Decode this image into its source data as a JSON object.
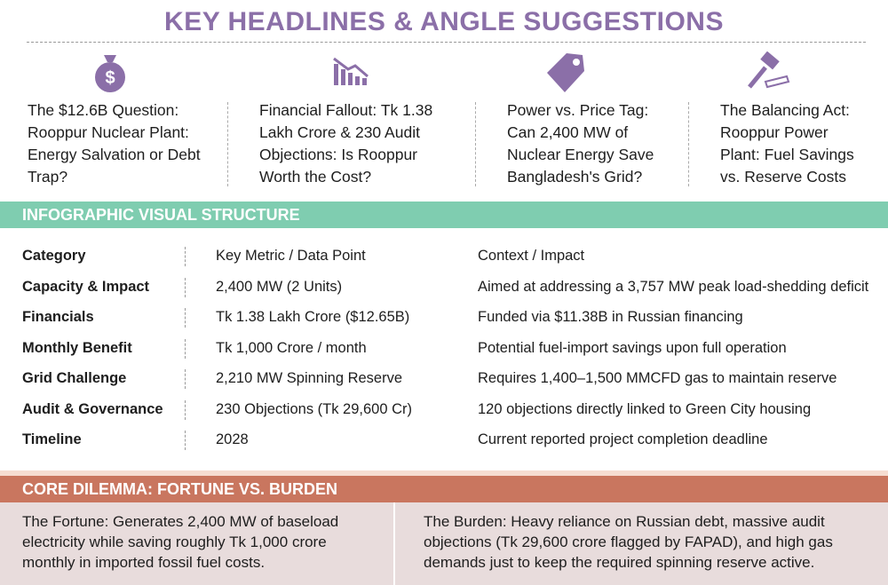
{
  "header": {
    "title": "KEY HEADLINES & ANGLE SUGGESTIONS"
  },
  "headlines": [
    {
      "text": "The $12.6B Question: Rooppur Nuclear Plant: Energy Salvation or Debt Trap?"
    },
    {
      "text": "Financial Fallout: Tk 1.38 Lakh Crore & 230 Audit Objections: Is Rooppur Worth the Cost?"
    },
    {
      "text": "Power vs. Price Tag: Can 2,400 MW of Nuclear Energy Save Bangladesh's Grid?"
    },
    {
      "text": "The Balancing Act: Rooppur Power Plant: Fuel Savings vs. Reserve Costs"
    }
  ],
  "structure": {
    "title": "INFOGRAPHIC VISUAL STRUCTURE",
    "table": {
      "header": [
        "Category",
        "Key Metric / Data Point",
        "Context / Impact"
      ],
      "rows": [
        [
          "Capacity & Impact",
          "2,400 MW (2 Units)",
          "Aimed at addressing a 3,757 MW peak load-shedding deficit"
        ],
        [
          "Financials",
          "Tk 1.38 Lakh Crore ($12.65B)",
          "Funded via $11.38B in Russian financing"
        ],
        [
          "Monthly Benefit",
          "Tk 1,000 Crore / month",
          "Potential fuel-import savings upon full operation"
        ],
        [
          "Grid Challenge",
          "2,210 MW Spinning Reserve",
          "Requires 1,400–1,500 MMCFD gas to maintain reserve"
        ],
        [
          "Audit & Governance",
          "230 Objections (Tk 29,600 Cr)",
          "120 objections directly linked to Green City housing"
        ],
        [
          "Timeline",
          "2028",
          "Current reported project completion deadline"
        ]
      ]
    }
  },
  "dilemma": {
    "title": "CORE DILEMMA: FORTUNE VS. BURDEN",
    "fortune": "The Fortune: Generates 2,400 MW of baseload electricity while saving roughly Tk 1,000 crore monthly in imported fossil fuel costs.",
    "burden": "The Burden: Heavy reliance on Russian debt, massive audit objections (Tk 29,600 crore flagged by FAPAD), and high gas demands just to keep the required spinning reserve active."
  }
}
